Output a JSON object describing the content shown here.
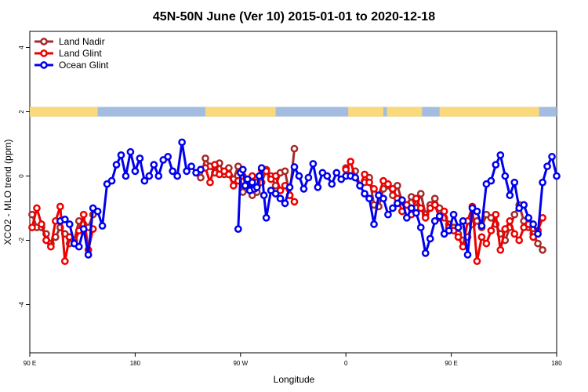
{
  "chart_data": {
    "type": "line",
    "title": "45N-50N June (Ver 10)   2015-01-01 to 2020-12-18",
    "xlabel": "Longitude",
    "ylabel": "XCO2 - MLO trend (ppm)",
    "x_unit": "degrees longitude, unwrapped (90 = 90 E, 180, 270 = 90 W, 360 = 0, 450 = 90 E, 540 = 180)",
    "xlim": [
      90,
      540
    ],
    "ylim": [
      -5.5,
      4.5
    ],
    "x_ticks": [
      {
        "value": 90,
        "label": "90 E"
      },
      {
        "value": 180,
        "label": "180"
      },
      {
        "value": 270,
        "label": "90 W"
      },
      {
        "value": 360,
        "label": "0"
      },
      {
        "value": 450,
        "label": "90 E"
      },
      {
        "value": 540,
        "label": "180"
      }
    ],
    "y_ticks": [
      {
        "value": 4,
        "label": "4"
      },
      {
        "value": 2,
        "label": "2"
      },
      {
        "value": 0,
        "label": "0"
      },
      {
        "value": -2,
        "label": "-2"
      },
      {
        "value": -4,
        "label": "-4"
      }
    ],
    "grid": false,
    "legend_position": "top-left",
    "land_ocean_strip": {
      "y_range": [
        1.85,
        2.15
      ],
      "land_color": "#F9D979",
      "ocean_color": "#A3BCE0"
    },
    "series": [
      {
        "name": "Land Nadir",
        "color": "#A52A2A",
        "segments": [
          {
            "x": [
              92,
              96,
              100,
              104,
              108,
              112,
              116,
              120,
              124,
              128,
              132,
              136,
              140,
              144
            ],
            "y": [
              -1.2,
              -1.6,
              -1.6,
              -1.8,
              -2.1,
              -1.9,
              -1.6,
              -1.8,
              -2.1,
              -2.0,
              -1.4,
              -1.5,
              -1.6,
              -1.2
            ]
          },
          {
            "x": [
              236,
              240,
              244,
              248,
              252,
              256,
              260,
              264,
              268,
              272,
              276,
              280,
              284,
              288,
              292,
              296,
              300,
              304,
              308,
              312,
              316
            ],
            "y": [
              -0.05,
              0.55,
              0.3,
              0.1,
              0.4,
              0.05,
              0.25,
              -0.1,
              0.3,
              -0.5,
              -0.4,
              -0.6,
              -0.5,
              -0.2,
              0.2,
              0.0,
              -0.3,
              0.1,
              0.15,
              -0.6,
              0.85
            ]
          },
          {
            "x": [
              360,
              364,
              368,
              372,
              376,
              380,
              384,
              388,
              392,
              396,
              400,
              404,
              408,
              412,
              416,
              420,
              424,
              428,
              432,
              436,
              440,
              444,
              448,
              452,
              456,
              460,
              464,
              468,
              472,
              476,
              480,
              484,
              488,
              492,
              496,
              500,
              504,
              508,
              512,
              516,
              520,
              524,
              528
            ],
            "y": [
              0.25,
              0.0,
              0.15,
              -0.3,
              -0.2,
              -0.05,
              -0.9,
              -0.95,
              -0.4,
              -0.3,
              -0.6,
              -0.3,
              -0.8,
              -0.9,
              -0.65,
              -1.0,
              -0.55,
              -1.2,
              -0.9,
              -0.7,
              -1.0,
              -1.3,
              -1.5,
              -1.6,
              -1.8,
              -2.0,
              -1.9,
              -1.5,
              -1.4,
              -1.6,
              -1.2,
              -1.3,
              -1.5,
              -1.8,
              -2.0,
              -1.6,
              -1.2,
              -0.9,
              -1.4,
              -1.6,
              -1.8,
              -2.1,
              -2.3
            ]
          }
        ]
      },
      {
        "name": "Land Glint",
        "color": "#EE0000",
        "segments": [
          {
            "x": [
              92,
              96,
              100,
              104,
              108,
              112,
              116,
              120,
              124,
              128,
              132,
              136,
              140,
              144
            ],
            "y": [
              -1.6,
              -1.0,
              -1.5,
              -2.0,
              -2.2,
              -1.4,
              -0.95,
              -2.65,
              -1.9,
              -2.1,
              -1.7,
              -1.2,
              -2.3,
              -1.65
            ]
          },
          {
            "x": [
              236,
              240,
              244,
              248,
              252,
              256,
              260,
              264,
              268,
              272,
              276,
              280,
              284,
              288,
              292,
              296,
              300,
              304,
              308,
              312,
              316
            ],
            "y": [
              0.2,
              0.25,
              -0.2,
              0.35,
              0.05,
              0.15,
              0.05,
              -0.3,
              -0.15,
              0.0,
              -0.2,
              0.0,
              -0.2,
              0.2,
              0.15,
              -0.1,
              0.0,
              -0.45,
              -0.3,
              -0.6,
              -0.8
            ]
          },
          {
            "x": [
              360,
              364,
              368,
              372,
              376,
              380,
              384,
              388,
              392,
              396,
              400,
              404,
              408,
              412,
              416,
              420,
              424,
              428,
              432,
              436,
              440,
              444,
              448,
              452,
              456,
              460,
              464,
              468,
              472,
              476,
              480,
              484,
              488,
              492,
              496,
              500,
              504,
              508,
              512,
              516,
              520,
              524,
              528
            ],
            "y": [
              0.2,
              0.45,
              -0.05,
              -0.3,
              0.05,
              -0.2,
              -0.4,
              -0.6,
              -0.15,
              -0.25,
              -0.4,
              -0.7,
              -1.1,
              -0.9,
              -1.2,
              -0.7,
              -1.0,
              -1.3,
              -1.0,
              -0.9,
              -1.3,
              -1.1,
              -1.6,
              -1.7,
              -1.9,
              -2.2,
              -1.4,
              -0.95,
              -2.65,
              -1.9,
              -2.1,
              -1.7,
              -1.2,
              -2.3,
              -1.65,
              -1.4,
              -1.8,
              -2.0,
              -1.6,
              -1.5,
              -1.9,
              -1.7,
              -1.3
            ]
          }
        ]
      },
      {
        "name": "Ocean Glint",
        "color": "#0000EE",
        "segments": [
          {
            "x": [
              116,
              120,
              124,
              128,
              132,
              136,
              140,
              144,
              148,
              152,
              156,
              160,
              164,
              168,
              172,
              176,
              180,
              184,
              188,
              192,
              196,
              200,
              204,
              208,
              212,
              216,
              220,
              224,
              228,
              232,
              236
            ],
            "y": [
              -1.4,
              -1.35,
              -1.5,
              -2.1,
              -2.2,
              -1.65,
              -2.45,
              -1.0,
              -1.1,
              -1.55,
              -0.25,
              -0.15,
              0.35,
              0.65,
              0.0,
              0.75,
              0.15,
              0.55,
              -0.15,
              0.0,
              0.35,
              0.0,
              0.5,
              0.6,
              0.15,
              0.0,
              1.05,
              0.15,
              0.3,
              0.1,
              0.2
            ]
          },
          {
            "x": [
              268,
              270,
              272,
              274,
              276,
              278,
              280,
              282,
              284,
              286,
              288,
              290,
              292,
              296,
              300,
              304,
              308,
              312,
              316,
              320,
              324,
              328,
              332,
              336,
              340,
              344,
              348,
              352,
              356,
              360,
              364,
              368,
              372,
              376,
              380,
              384,
              388,
              392,
              396,
              400,
              404,
              408,
              412,
              416,
              420,
              424,
              428,
              432,
              436,
              440,
              444,
              448,
              452,
              456,
              460,
              464,
              468,
              472,
              476,
              480,
              484,
              488,
              492,
              496,
              500,
              504,
              508,
              512,
              516,
              520,
              524,
              528,
              532,
              536,
              540
            ],
            "y": [
              -1.65,
              0.1,
              0.2,
              -0.3,
              -0.1,
              -0.45,
              -0.2,
              -0.4,
              -0.35,
              0.0,
              0.25,
              -0.6,
              -1.3,
              -0.45,
              -0.55,
              -0.7,
              -0.85,
              -0.35,
              0.28,
              0.0,
              -0.4,
              -0.05,
              0.38,
              -0.35,
              0.1,
              0.0,
              -0.25,
              0.1,
              -0.1,
              0.0,
              0.0,
              -0.05,
              -0.3,
              -0.55,
              -0.7,
              -1.5,
              -0.6,
              -0.7,
              -1.2,
              -1.0,
              -0.85,
              -0.75,
              -1.3,
              -1.0,
              -1.15,
              -1.6,
              -2.4,
              -1.95,
              -1.4,
              -1.25,
              -1.8,
              -1.7,
              -1.2,
              -1.6,
              -1.4,
              -2.45,
              -1.0,
              -1.1,
              -1.55,
              -0.25,
              -0.15,
              0.35,
              0.65,
              0.0,
              -0.6,
              -0.2,
              -1.0,
              -0.9,
              -1.3,
              -1.5,
              -1.8,
              -0.2,
              0.3,
              0.6,
              0.0
            ]
          }
        ]
      }
    ]
  }
}
